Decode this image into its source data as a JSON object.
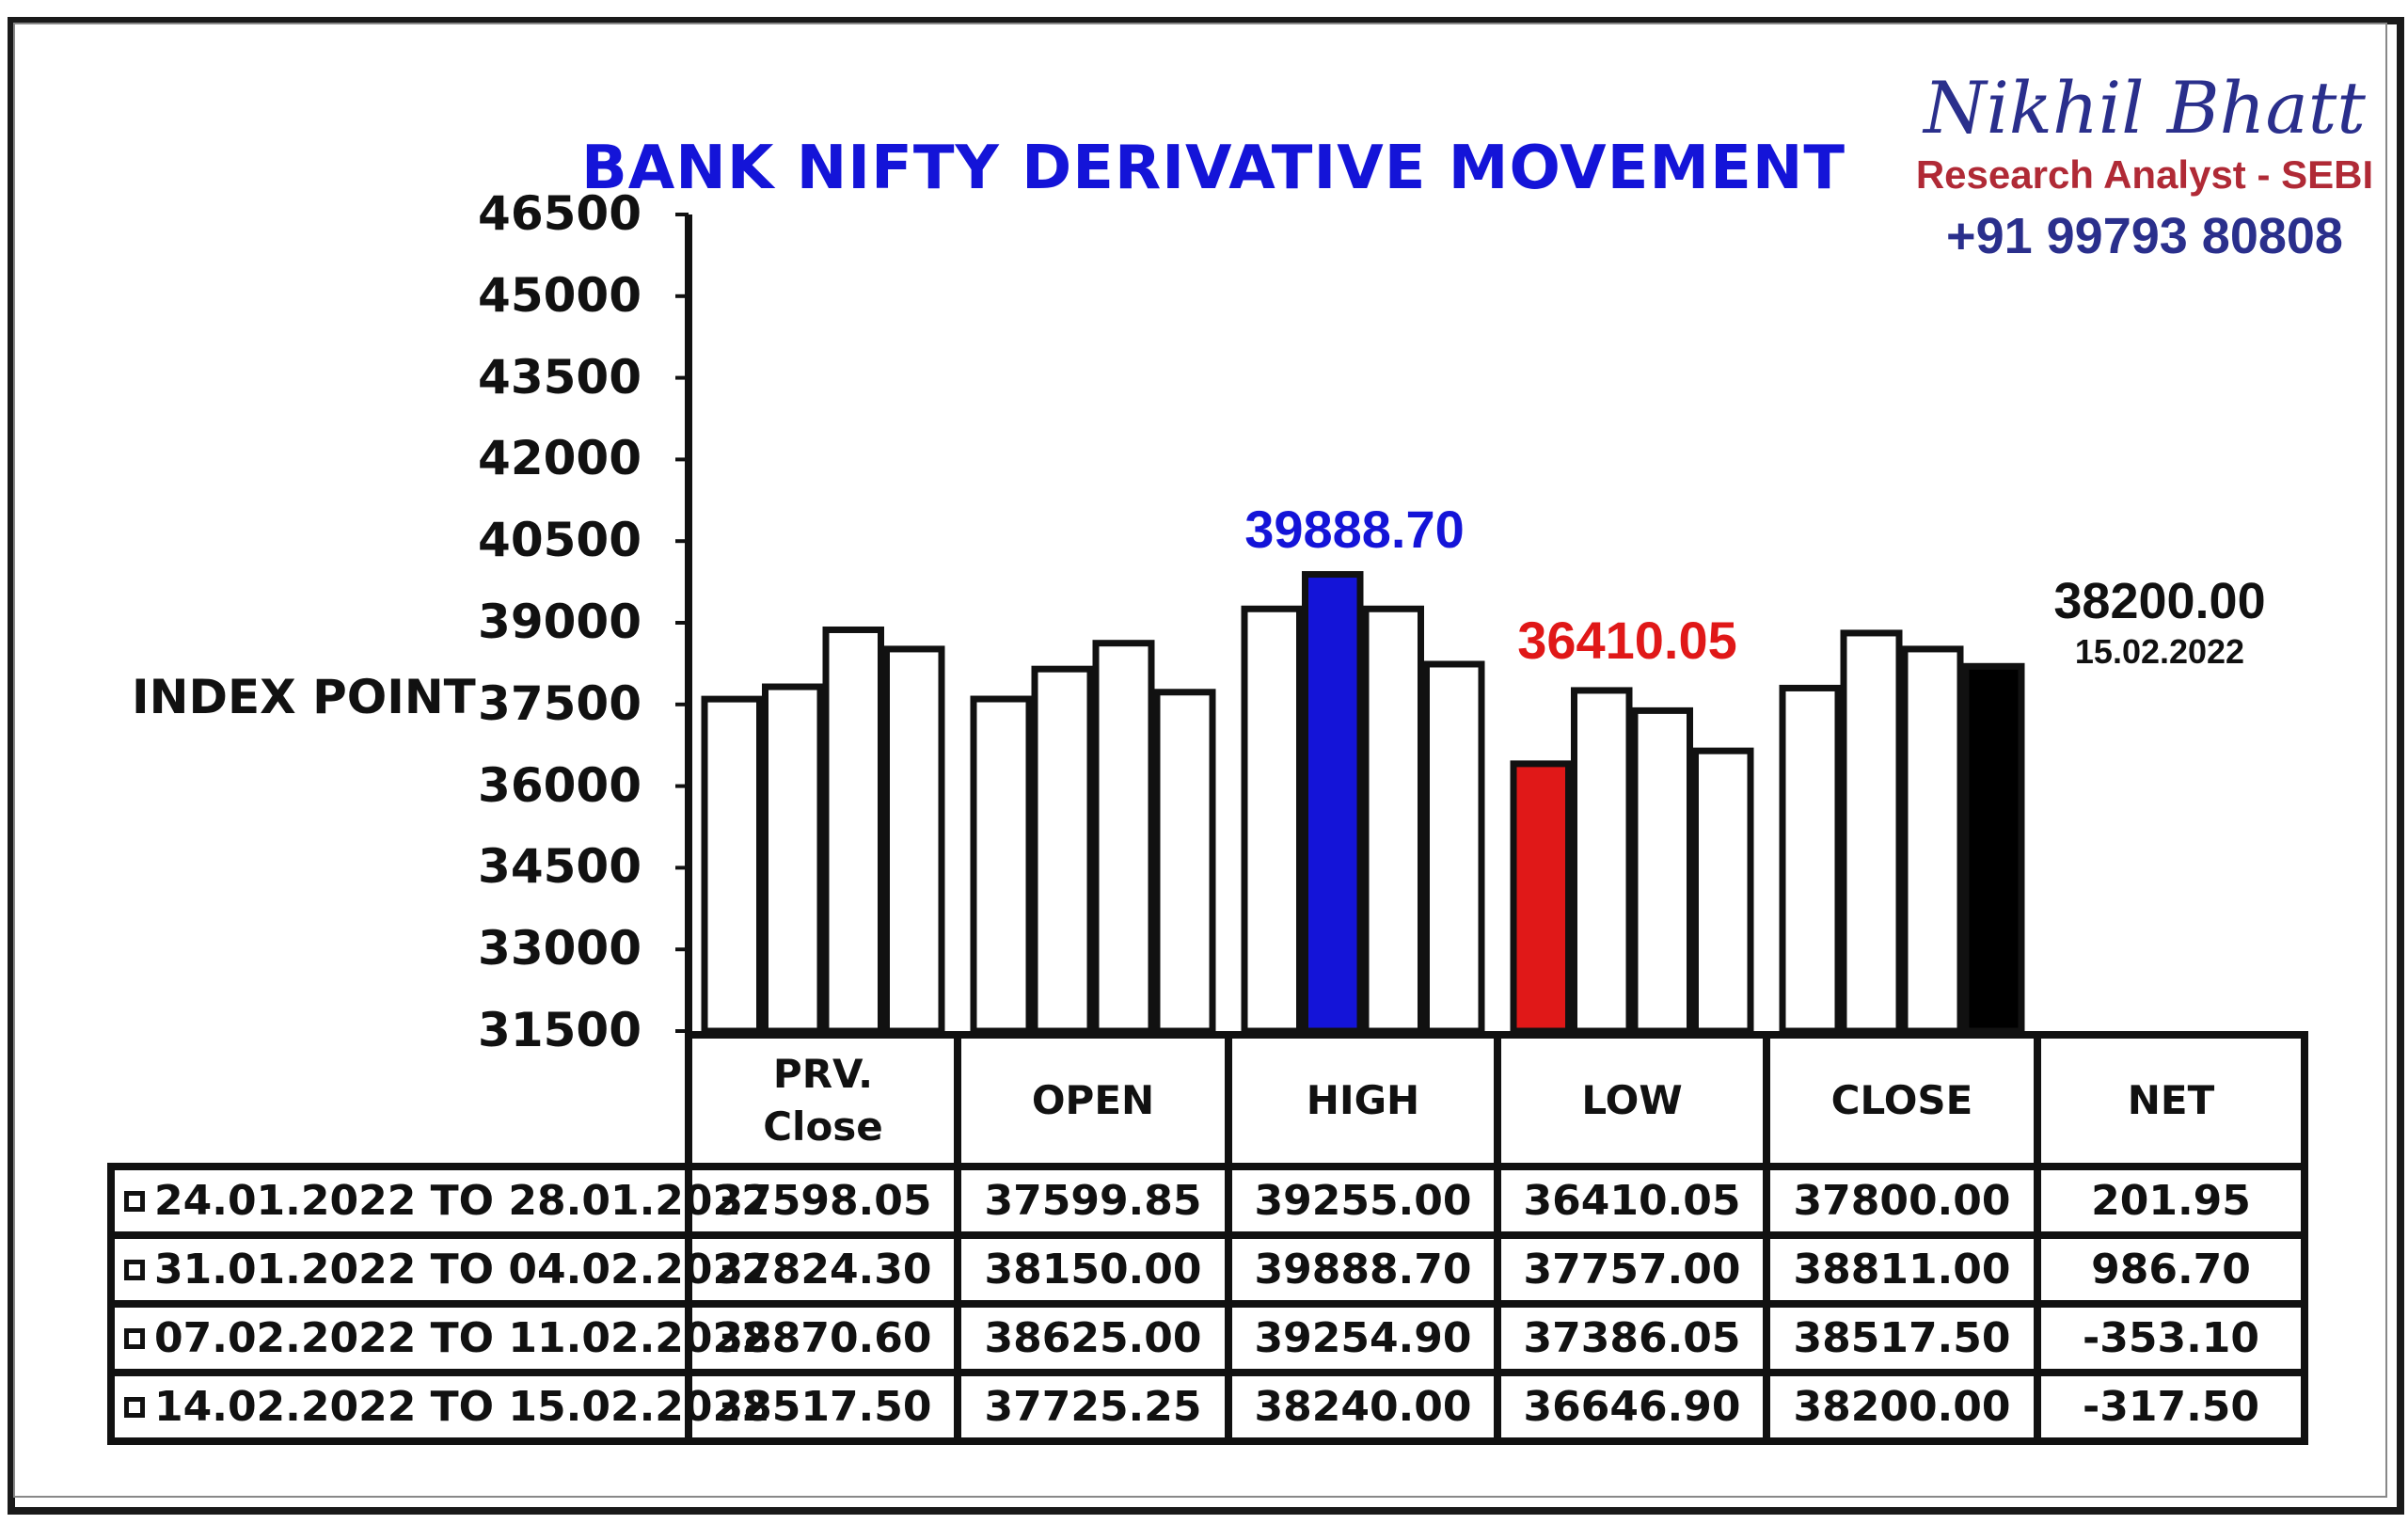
{
  "chart_data": {
    "type": "bar",
    "title": "BANK NIFTY DERIVATIVE MOVEMENT",
    "ylabel": "INDEX POINT",
    "ylim": [
      31500,
      46500
    ],
    "yticks": [
      "46500",
      "45000",
      "43500",
      "42000",
      "40500",
      "39000",
      "37500",
      "36000",
      "34500",
      "33000",
      "31500"
    ],
    "categories": [
      "PRV. Close",
      "OPEN",
      "HIGH",
      "LOW",
      "CLOSE"
    ],
    "table_headers": [
      "PRV.\nClose",
      "OPEN",
      "HIGH",
      "LOW",
      "CLOSE",
      "NET"
    ],
    "series": [
      {
        "name": "24.01.2022 TO 28.01.2022",
        "values": [
          37598.05,
          37599.85,
          39255.0,
          36410.05,
          37800.0
        ],
        "net": 201.95
      },
      {
        "name": "31.01.2022 TO 04.02.2022",
        "values": [
          37824.3,
          38150.0,
          39888.7,
          37757.0,
          38811.0
        ],
        "net": 986.7
      },
      {
        "name": "07.02.2022 TO 11.02.2022",
        "values": [
          38870.6,
          38625.0,
          39254.9,
          37386.05,
          38517.5
        ],
        "net": -353.1
      },
      {
        "name": "14.02.2022 TO 15.02.2022",
        "values": [
          38517.5,
          37725.25,
          38240.0,
          36646.9,
          38200.0
        ],
        "net": -317.5
      }
    ],
    "table_rows": [
      {
        "label": "24.01.2022 TO 28.01.2022",
        "cells": [
          "37598.05",
          "37599.85",
          "39255.00",
          "36410.05",
          "37800.00",
          "201.95"
        ]
      },
      {
        "label": "31.01.2022 TO 04.02.2022",
        "cells": [
          "37824.30",
          "38150.00",
          "39888.70",
          "37757.00",
          "38811.00",
          "986.70"
        ]
      },
      {
        "label": "07.02.2022 TO 11.02.2022",
        "cells": [
          "38870.60",
          "38625.00",
          "39254.90",
          "37386.05",
          "38517.50",
          "-353.10"
        ]
      },
      {
        "label": "14.02.2022 TO 15.02.2022",
        "cells": [
          "38517.50",
          "37725.25",
          "38240.00",
          "36646.90",
          "38200.00",
          "-317.50"
        ]
      }
    ],
    "highlights": [
      {
        "category": "HIGH",
        "series": 1,
        "color": "#1414d8"
      },
      {
        "category": "LOW",
        "series": 0,
        "color": "#e01818"
      },
      {
        "category": "CLOSE",
        "series": 3,
        "color": "#000000"
      }
    ],
    "annotations": {
      "high": "39888.70",
      "low": "36410.05",
      "close": "38200.00",
      "close_date": "15.02.2022"
    },
    "grid": false,
    "legend": "table"
  },
  "brand": {
    "name": "Nikhil Bhatt",
    "subtitle": "Research Analyst - SEBI",
    "phone": "+91 99793 80808"
  },
  "colors": {
    "title": "#1414d8",
    "brand_name": "#2a2f8c",
    "brand_sub": "#b02a36",
    "high": "#1414d8",
    "low": "#e01818",
    "close": "#000000"
  }
}
